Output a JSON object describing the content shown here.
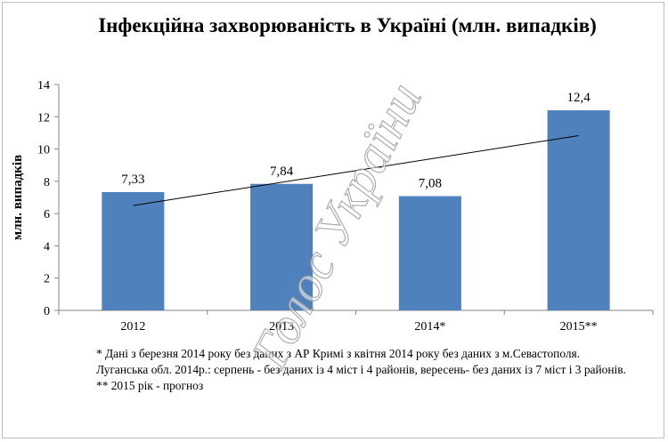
{
  "chart_data": {
    "type": "bar",
    "title": "Інфекційна захворюваність в Україні (млн. випадків)",
    "ylabel": "млн. випадків",
    "categories": [
      "2012",
      "2013",
      "2014*",
      "2015**"
    ],
    "values": [
      7.33,
      7.84,
      7.08,
      12.4
    ],
    "value_labels": [
      "7,33",
      "7,84",
      "7,08",
      "12,4"
    ],
    "ylim": [
      0,
      14
    ],
    "yticks": [
      0,
      2,
      4,
      6,
      8,
      10,
      12,
      14
    ],
    "trendline": "linear",
    "grid": false,
    "bar_color": "#4f81bd"
  },
  "notes": [
    "* Дані з березня 2014 року без даних з АР Кримі з квітня 2014 року без даних з м.Севастополя.",
    "Луганська обл. 2014р.:  серпень -  без даних із 4 міст і 4 районів, вересень- без даних із 7 міст і 3 районів.",
    "** 2015 рік - прогноз"
  ],
  "watermark": {
    "text": "Голос України"
  }
}
